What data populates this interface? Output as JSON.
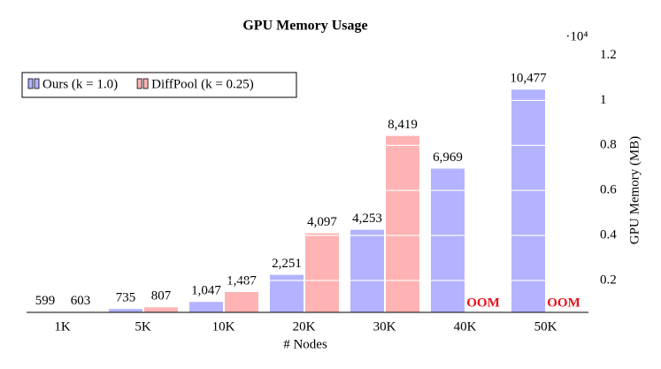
{
  "chart_data": {
    "type": "bar",
    "title": "GPU Memory Usage",
    "x_label": "# Nodes",
    "y_label": "GPU Memory (MB)",
    "y_scale_label": "·10⁴",
    "categories": [
      "1K",
      "5K",
      "10K",
      "20K",
      "30K",
      "40K",
      "50K"
    ],
    "series": [
      {
        "name": "Ours (k = 1.0)",
        "color": "#b3b3ff",
        "values": [
          599,
          735,
          1047,
          2251,
          4253,
          6969,
          10477
        ],
        "value_labels": [
          "599",
          "735",
          "1,047",
          "2,251",
          "4,253",
          "6,969",
          "10,477"
        ]
      },
      {
        "name": "DiffPool (k = 0.25)",
        "color": "#ffb3b3",
        "values": [
          603,
          807,
          1487,
          4097,
          8419,
          null,
          null
        ],
        "value_labels": [
          "603",
          "807",
          "1,487",
          "4,097",
          "8,419",
          "OOM",
          "OOM"
        ]
      }
    ],
    "ylim": [
      583,
      12100
    ],
    "yticks": [
      {
        "value": 2000,
        "label": "0.2"
      },
      {
        "value": 4000,
        "label": "0.4"
      },
      {
        "value": 6000,
        "label": "0.6"
      },
      {
        "value": 8000,
        "label": "0.8"
      },
      {
        "value": 10000,
        "label": "1"
      },
      {
        "value": 12000,
        "label": "1.2"
      }
    ],
    "grid": true,
    "legend_position": "top-left"
  }
}
